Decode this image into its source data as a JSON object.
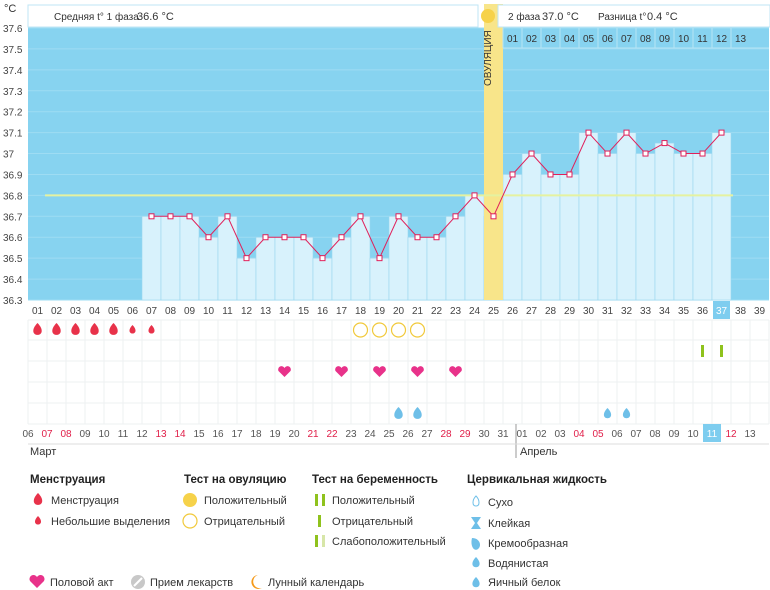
{
  "header": {
    "unit": "°C",
    "phase1_label": "Средняя t° 1 фаза",
    "phase1_value": "36.6 °C",
    "phase2_label": "2 фаза",
    "phase2_value": "37.0 °C",
    "diff_label": "Разница t°",
    "diff_value": "0.4 °C"
  },
  "ovulation_label": "ОВУЛЯЦИЯ",
  "chart_data": {
    "type": "line",
    "ylabel": "°C",
    "ylim": [
      36.3,
      37.6
    ],
    "yticks": [
      "37.6",
      "37.5",
      "37.4",
      "37.3",
      "37.2",
      "37.1",
      "37",
      "36.9",
      "36.8",
      "36.7",
      "36.6",
      "36.5",
      "36.4",
      "36.3"
    ],
    "cycle_days": [
      "01",
      "02",
      "03",
      "04",
      "05",
      "06",
      "07",
      "08",
      "09",
      "10",
      "11",
      "12",
      "13",
      "14",
      "15",
      "16",
      "17",
      "18",
      "19",
      "20",
      "21",
      "22",
      "23",
      "24",
      "25",
      "26",
      "27",
      "28",
      "29",
      "30",
      "31",
      "32",
      "33",
      "34",
      "35",
      "36",
      "37",
      "38",
      "39"
    ],
    "current_cycle_day": "37",
    "ovulation_day": 25,
    "coverline": 36.8,
    "series": [
      {
        "x": [
          7,
          8,
          9,
          10,
          11,
          12,
          13,
          14,
          15,
          16,
          17,
          18,
          19,
          20,
          21,
          22,
          23,
          24,
          25,
          26,
          27,
          28,
          29,
          30,
          31,
          32,
          33,
          34,
          35,
          36,
          37
        ],
        "values": [
          36.7,
          36.7,
          36.7,
          36.6,
          36.7,
          36.5,
          36.6,
          36.6,
          36.6,
          36.5,
          36.6,
          36.7,
          36.5,
          36.7,
          36.6,
          36.6,
          36.7,
          36.8,
          36.7,
          36.9,
          37.0,
          36.9,
          36.9,
          37.1,
          37.0,
          37.1,
          37.0,
          37.05,
          37.0,
          37.0,
          37.1
        ]
      }
    ],
    "phase2_days": [
      "01",
      "02",
      "03",
      "04",
      "05",
      "06",
      "07",
      "08",
      "09",
      "10",
      "11",
      "12",
      "13"
    ],
    "dates": [
      "06",
      "07",
      "08",
      "09",
      "10",
      "11",
      "12",
      "13",
      "14",
      "15",
      "16",
      "17",
      "18",
      "19",
      "20",
      "21",
      "22",
      "23",
      "24",
      "25",
      "26",
      "27",
      "28",
      "29",
      "30",
      "31",
      "01",
      "02",
      "03",
      "04",
      "05",
      "06",
      "07",
      "08",
      "09",
      "10",
      "11",
      "12",
      "13"
    ],
    "date_colors": [
      "#555",
      "#e0204a",
      "#e0204a",
      "#555",
      "#555",
      "#555",
      "#555",
      "#e0204a",
      "#e0204a",
      "#555",
      "#555",
      "#555",
      "#555",
      "#555",
      "#555",
      "#e0204a",
      "#e0204a",
      "#555",
      "#555",
      "#555",
      "#555",
      "#555",
      "#e0204a",
      "#e0204a",
      "#555",
      "#555",
      "#555",
      "#555",
      "#555",
      "#e0204a",
      "#e0204a",
      "#555",
      "#555",
      "#555",
      "#555",
      "#555",
      "#555",
      "#e0204a",
      "#555"
    ],
    "current_date_index": 36,
    "months": [
      "Март",
      "Апрель"
    ],
    "markers": {
      "menstruation": [
        1,
        2,
        3,
        4,
        5
      ],
      "spotting": [
        6,
        7
      ],
      "ovulation_test_negative": [
        18,
        19,
        20,
        21
      ],
      "pregnancy_test_weak": [
        36,
        37
      ],
      "intercourse": [
        14,
        17,
        19,
        21,
        23
      ],
      "cervical_watery": [
        20,
        21
      ],
      "cervical_creamy": [
        31,
        32
      ]
    }
  },
  "legend": {
    "menstruation_title": "Менструация",
    "menstruation_items": [
      "Менструация",
      "Небольшие выделения"
    ],
    "ovulation_title": "Тест на овуляцию",
    "ovulation_items": [
      "Положительный",
      "Отрицательный"
    ],
    "pregnancy_title": "Тест на беременность",
    "pregnancy_items": [
      "Положительный",
      "Отрицательный",
      "Слабоположительный"
    ],
    "cervical_title": "Цервикальная жидкость",
    "cervical_items": [
      "Сухо",
      "Клейкая",
      "Кремообразная",
      "Водянистая",
      "Яичный белок"
    ],
    "bottom_items": [
      "Половой акт",
      "Прием лекарств",
      "Лунный календарь"
    ]
  },
  "colors": {
    "sky": "#87d3f0",
    "bar": "#d8f2fc",
    "bar_border": "#9ad6ef",
    "line": "#e0205a",
    "ovulation": "#f8e58a",
    "coverline": "#e5f2a0",
    "accent_red": "#e8324a"
  }
}
